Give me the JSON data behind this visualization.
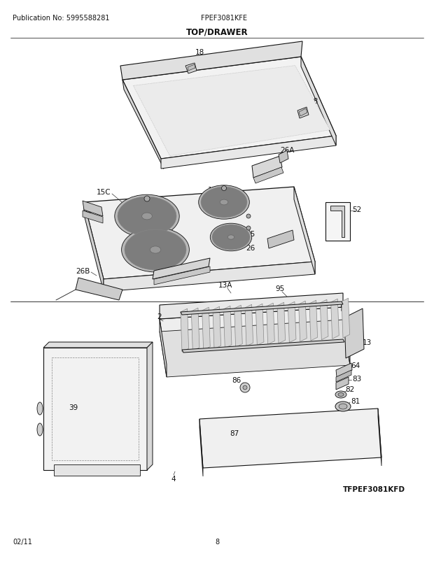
{
  "pub_no": "Publication No: 5995588281",
  "model": "FPEF3081KFE",
  "title": "TOP/DRAWER",
  "footer_left": "02/11",
  "footer_center": "8",
  "footer_right": "TFPEF3081KFD",
  "bg_color": "#ffffff",
  "lc": "#333333",
  "lc_dark": "#111111"
}
